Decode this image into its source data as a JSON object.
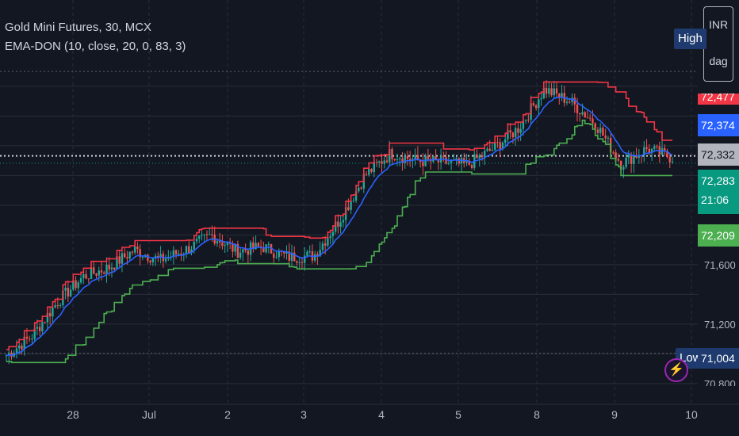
{
  "legend": {
    "title": "Gold Mini Futures, 30, MCX",
    "indicator": "EMA-DON (10, close, 20, 0, 83, 3)"
  },
  "currency_box": {
    "line1": "INR",
    "line2": "dag"
  },
  "labels": {
    "high": "High",
    "low": "Low"
  },
  "price_tags": {
    "red_clipped": "72,477",
    "blue": "72,374",
    "current": "72,332",
    "green_price": "72,283",
    "countdown": "21:06",
    "green_line": "72,209",
    "low": "71,004"
  },
  "colors": {
    "background": "#131722",
    "up": "#26a69a",
    "down": "#ef5350",
    "ema": "#2962ff",
    "don_upper": "#f23645",
    "don_lower": "#4caf50",
    "low_label": "#1e3a6e"
  },
  "chart_data": {
    "type": "candlestick",
    "title": "Gold Mini Futures, 30, MCX",
    "indicator": "EMA-DON (10, close, 20, 0, 83, 3)",
    "ylim": [
      70800,
      72900
    ],
    "y_ticks": [
      70800,
      71200,
      71600
    ],
    "x_tick_labels": [
      "28",
      "Jul",
      "2",
      "3",
      "4",
      "5",
      "8",
      "9",
      "10"
    ],
    "series_anchor_points": [
      [
        "27 Jun",
        70990
      ],
      [
        "27 Jun",
        71120
      ],
      [
        "27 Jun",
        71350
      ],
      [
        "28 Jun",
        71520
      ],
      [
        "28 Jun",
        71580
      ],
      [
        "28 Jun",
        71700
      ],
      [
        "1 Jul",
        71630
      ],
      [
        "1 Jul",
        71700
      ],
      [
        "1 Jul",
        71800
      ],
      [
        "2 Jul",
        71690
      ],
      [
        "2 Jul",
        71720
      ],
      [
        "2 Jul",
        71650
      ],
      [
        "3 Jul",
        71660
      ],
      [
        "3 Jul",
        71900
      ],
      [
        "3 Jul",
        72200
      ],
      [
        "4 Jul",
        72350
      ],
      [
        "4 Jul",
        72300
      ],
      [
        "4 Jul",
        72290
      ],
      [
        "5 Jul",
        72270
      ],
      [
        "5 Jul",
        72380
      ],
      [
        "5 Jul",
        72520
      ],
      [
        "8 Jul",
        72780
      ],
      [
        "8 Jul",
        72700
      ],
      [
        "8 Jul",
        72550
      ],
      [
        "9 Jul",
        72280
      ],
      [
        "9 Jul",
        72380
      ],
      [
        "9 Jul",
        72320
      ]
    ],
    "high": 72900,
    "low": 71004,
    "last_price": 72332
  }
}
